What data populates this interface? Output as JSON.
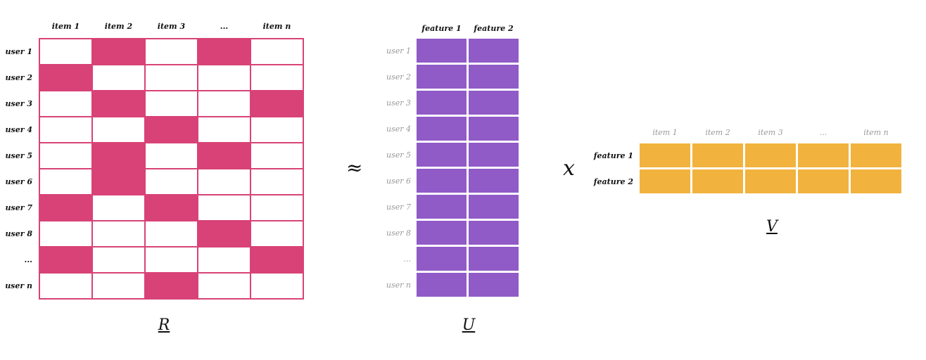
{
  "colors": {
    "rating_fill": "#d84277",
    "empty": "#ffffff",
    "user_factor": "#905ac7",
    "item_factor": "#f1b33d"
  },
  "R": {
    "name": "R",
    "col_labels": [
      "item 1",
      "item 2",
      "item 3",
      "...",
      "item n"
    ],
    "row_labels": [
      "user 1",
      "user 2",
      "user 3",
      "user 4",
      "user 5",
      "user 6",
      "user 7",
      "user 8",
      "...",
      "user n"
    ],
    "filled": [
      [
        0,
        1,
        0,
        1,
        0
      ],
      [
        1,
        0,
        0,
        0,
        0
      ],
      [
        0,
        1,
        0,
        0,
        1
      ],
      [
        0,
        0,
        1,
        0,
        0
      ],
      [
        0,
        1,
        0,
        1,
        0
      ],
      [
        0,
        1,
        0,
        0,
        0
      ],
      [
        1,
        0,
        1,
        0,
        0
      ],
      [
        0,
        0,
        0,
        1,
        0
      ],
      [
        1,
        0,
        0,
        0,
        1
      ],
      [
        0,
        0,
        1,
        0,
        0
      ]
    ]
  },
  "approx_symbol": "≈",
  "U": {
    "name": "U",
    "col_labels": [
      "feature 1",
      "feature 2"
    ],
    "row_labels": [
      "user 1",
      "user 2",
      "user 3",
      "user 4",
      "user 5",
      "user 6",
      "user 7",
      "user 8",
      "...",
      "user n"
    ]
  },
  "times_symbol": "x",
  "V": {
    "name": "V",
    "col_labels": [
      "item 1",
      "item 2",
      "item 3",
      "...",
      "item n"
    ],
    "row_labels": [
      "feature 1",
      "feature 2"
    ]
  }
}
